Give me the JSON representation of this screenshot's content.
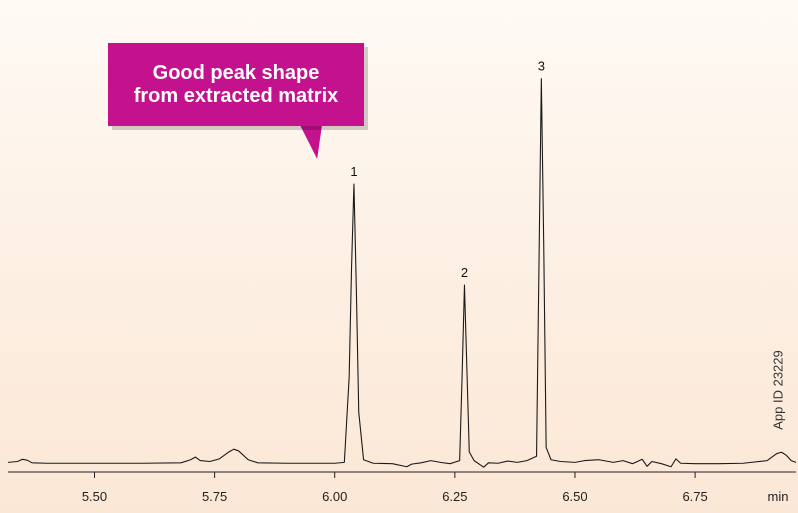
{
  "chart_data": {
    "type": "line",
    "title": "",
    "xlabel": "",
    "ylabel": "",
    "x_unit_label": "min",
    "xlim": [
      5.32,
      6.96
    ],
    "ylim": [
      0,
      100
    ],
    "x_ticks": [
      5.5,
      5.75,
      6.0,
      6.25,
      6.5,
      6.75
    ],
    "x_tick_labels": [
      "5.50",
      "5.75",
      "6.00",
      "6.25",
      "6.50",
      "6.75"
    ],
    "grid": false,
    "peaks": [
      {
        "label": "1",
        "x": 6.04,
        "y": 64
      },
      {
        "label": "2",
        "x": 6.27,
        "y": 41
      },
      {
        "label": "3",
        "x": 6.43,
        "y": 88
      }
    ],
    "series": [
      {
        "color": "#1a1a1a",
        "points": [
          [
            5.32,
            0.6
          ],
          [
            5.34,
            0.8
          ],
          [
            5.35,
            1.3
          ],
          [
            5.36,
            1.1
          ],
          [
            5.37,
            0.5
          ],
          [
            5.4,
            0.4
          ],
          [
            5.5,
            0.4
          ],
          [
            5.6,
            0.4
          ],
          [
            5.68,
            0.5
          ],
          [
            5.7,
            1.2
          ],
          [
            5.71,
            1.8
          ],
          [
            5.72,
            1.0
          ],
          [
            5.74,
            0.8
          ],
          [
            5.76,
            1.4
          ],
          [
            5.78,
            3.0
          ],
          [
            5.79,
            3.6
          ],
          [
            5.8,
            3.2
          ],
          [
            5.82,
            1.2
          ],
          [
            5.84,
            0.5
          ],
          [
            5.9,
            0.4
          ],
          [
            6.0,
            0.4
          ],
          [
            6.02,
            0.6
          ],
          [
            6.03,
            20
          ],
          [
            6.035,
            45
          ],
          [
            6.04,
            64
          ],
          [
            6.045,
            40
          ],
          [
            6.05,
            12
          ],
          [
            6.06,
            1.2
          ],
          [
            6.08,
            0.4
          ],
          [
            6.12,
            0.3
          ],
          [
            6.15,
            -0.4
          ],
          [
            6.16,
            0.2
          ],
          [
            6.18,
            0.5
          ],
          [
            6.2,
            1.0
          ],
          [
            6.22,
            0.6
          ],
          [
            6.24,
            0.3
          ],
          [
            6.26,
            1.0
          ],
          [
            6.265,
            20
          ],
          [
            6.27,
            41
          ],
          [
            6.275,
            22
          ],
          [
            6.28,
            3.0
          ],
          [
            6.29,
            1.0
          ],
          [
            6.31,
            -0.5
          ],
          [
            6.32,
            0.5
          ],
          [
            6.34,
            0.4
          ],
          [
            6.36,
            0.9
          ],
          [
            6.38,
            0.6
          ],
          [
            6.4,
            1.0
          ],
          [
            6.42,
            2.0
          ],
          [
            6.425,
            45
          ],
          [
            6.43,
            88
          ],
          [
            6.435,
            50
          ],
          [
            6.44,
            4.0
          ],
          [
            6.45,
            1.2
          ],
          [
            6.47,
            0.8
          ],
          [
            6.5,
            0.6
          ],
          [
            6.52,
            1.0
          ],
          [
            6.55,
            1.2
          ],
          [
            6.58,
            0.6
          ],
          [
            6.6,
            1.0
          ],
          [
            6.62,
            0.3
          ],
          [
            6.64,
            1.3
          ],
          [
            6.65,
            -0.3
          ],
          [
            6.66,
            0.8
          ],
          [
            6.68,
            0.3
          ],
          [
            6.7,
            -0.4
          ],
          [
            6.71,
            1.4
          ],
          [
            6.72,
            0.4
          ],
          [
            6.75,
            0.3
          ],
          [
            6.8,
            0.3
          ],
          [
            6.85,
            0.4
          ],
          [
            6.9,
            1.0
          ],
          [
            6.92,
            2.6
          ],
          [
            6.93,
            2.9
          ],
          [
            6.94,
            2.2
          ],
          [
            6.95,
            1.0
          ],
          [
            6.96,
            0.6
          ]
        ]
      }
    ],
    "annotation": "Good peak shape\nfrom extracted matrix",
    "annotation_lines": [
      "Good peak shape",
      "from extracted matrix"
    ],
    "side_label": "App ID 23229"
  }
}
